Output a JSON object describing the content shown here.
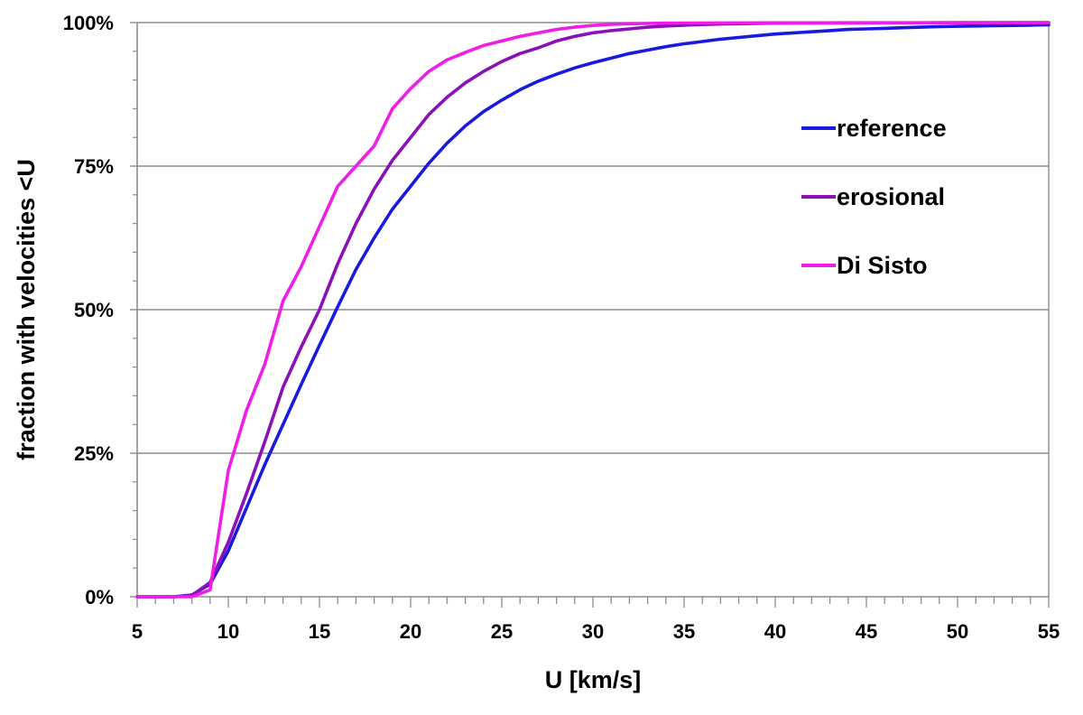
{
  "chart_data": {
    "type": "line",
    "title": "",
    "xlabel": "U [km/s]",
    "ylabel": "fraction with velocities <U",
    "xlim": [
      5,
      55
    ],
    "ylim": [
      0,
      100
    ],
    "x_ticks": [
      "5",
      "10",
      "15",
      "20",
      "25",
      "30",
      "35",
      "40",
      "45",
      "50",
      "55"
    ],
    "y_ticks": [
      "0%",
      "25%",
      "50%",
      "75%",
      "100%"
    ],
    "grid": "horizontal major lines",
    "legend_position": "upper-right inside plot",
    "series": [
      {
        "name": "reference",
        "color": "#1a1adf",
        "x": [
          5,
          6,
          7,
          8,
          9,
          10,
          11,
          12,
          13,
          14,
          15,
          16,
          17,
          18,
          19,
          20,
          21,
          22,
          23,
          24,
          25,
          26,
          27,
          28,
          29,
          30,
          31,
          32,
          33,
          34,
          35,
          36,
          37,
          38,
          39,
          40,
          41,
          42,
          43,
          44,
          45,
          46,
          47,
          48,
          49,
          50,
          51,
          52,
          53,
          54,
          55
        ],
        "values": [
          0,
          0,
          0,
          0.3,
          2.2,
          8,
          15.5,
          23,
          30,
          37,
          43.8,
          50.5,
          57,
          62.5,
          67.5,
          71.5,
          75.5,
          79,
          82,
          84.5,
          86.5,
          88.3,
          89.8,
          91,
          92.1,
          93,
          93.8,
          94.6,
          95.2,
          95.8,
          96.3,
          96.7,
          97.1,
          97.4,
          97.7,
          98,
          98.2,
          98.4,
          98.6,
          98.8,
          98.9,
          99,
          99.1,
          99.2,
          99.3,
          99.35,
          99.4,
          99.45,
          99.5,
          99.55,
          99.6
        ]
      },
      {
        "name": "erosional",
        "color": "#8b10b8",
        "x": [
          5,
          6,
          7,
          8,
          9,
          10,
          11,
          12,
          13,
          14,
          15,
          16,
          17,
          18,
          19,
          20,
          21,
          22,
          23,
          24,
          25,
          26,
          27,
          28,
          29,
          30,
          31,
          32,
          33,
          34,
          35,
          36,
          37,
          38,
          39,
          40,
          45,
          50,
          55
        ],
        "values": [
          0,
          0,
          0,
          0.2,
          2.5,
          9.5,
          18,
          27,
          36.5,
          43.5,
          50,
          58,
          65,
          71,
          76,
          80,
          84,
          87,
          89.5,
          91.5,
          93.2,
          94.6,
          95.6,
          96.8,
          97.6,
          98.2,
          98.6,
          98.9,
          99.2,
          99.4,
          99.55,
          99.65,
          99.75,
          99.8,
          99.85,
          99.9,
          99.95,
          99.97,
          100
        ]
      },
      {
        "name": "Di Sisto",
        "color": "#ee1ee8",
        "x": [
          5,
          6,
          7,
          8,
          9,
          10,
          11,
          12,
          13,
          14,
          15,
          16,
          17,
          18,
          19,
          20,
          21,
          22,
          23,
          24,
          25,
          26,
          27,
          28,
          29,
          30,
          31,
          32,
          33,
          34,
          35,
          40,
          45,
          50,
          55
        ],
        "values": [
          0,
          0,
          0,
          0,
          1.2,
          22,
          32.5,
          40.5,
          51.5,
          57.5,
          64.5,
          71.5,
          75,
          78.5,
          85,
          88.5,
          91.5,
          93.5,
          94.8,
          96,
          96.8,
          97.6,
          98.2,
          98.8,
          99.2,
          99.5,
          99.7,
          99.8,
          99.85,
          99.9,
          99.92,
          99.95,
          99.97,
          99.98,
          100
        ]
      }
    ]
  }
}
